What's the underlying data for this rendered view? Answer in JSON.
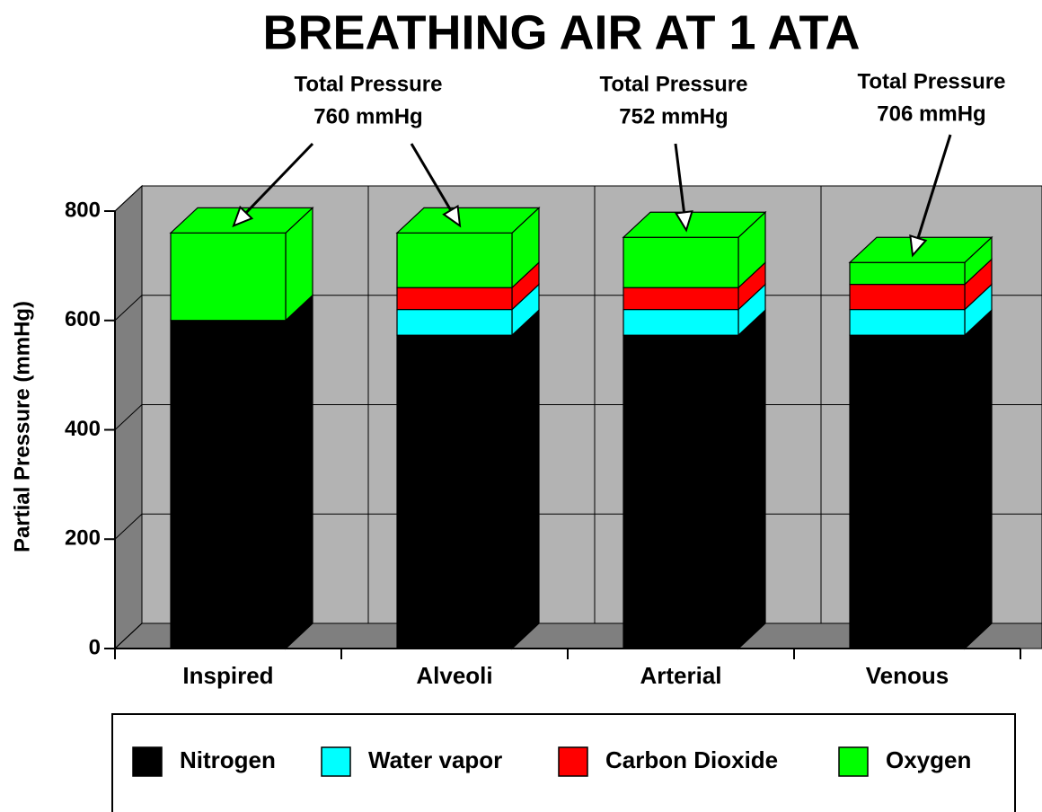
{
  "chart_data": {
    "type": "bar3d-stacked",
    "title": "BREATHING AIR AT 1 ATA",
    "y_label": "Partial Pressure (mmHg)",
    "categories": [
      "Inspired",
      "Alveoli",
      "Arterial",
      "Venous"
    ],
    "series": [
      {
        "name": "Nitrogen",
        "color": "#000000",
        "values": [
          600,
          573,
          573,
          573
        ]
      },
      {
        "name": "Water vapor",
        "color": "#00ffff",
        "values": [
          0,
          47,
          47,
          47
        ]
      },
      {
        "name": "Carbon Dioxide",
        "color": "#ff0000",
        "values": [
          0,
          40,
          40,
          46
        ]
      },
      {
        "name": "Oxygen",
        "color": "#00ff00",
        "values": [
          160,
          100,
          92,
          40
        ]
      }
    ],
    "ylim": [
      0,
      800
    ],
    "yticks": [
      0,
      200,
      400,
      600,
      800
    ],
    "grid": true,
    "annotations": [
      {
        "lines": [
          "Total Pressure",
          "760 mmHg"
        ]
      },
      {
        "lines": [
          "Total Pressure",
          "752 mmHg"
        ]
      },
      {
        "lines": [
          "Total Pressure",
          "706 mmHg"
        ]
      }
    ]
  }
}
